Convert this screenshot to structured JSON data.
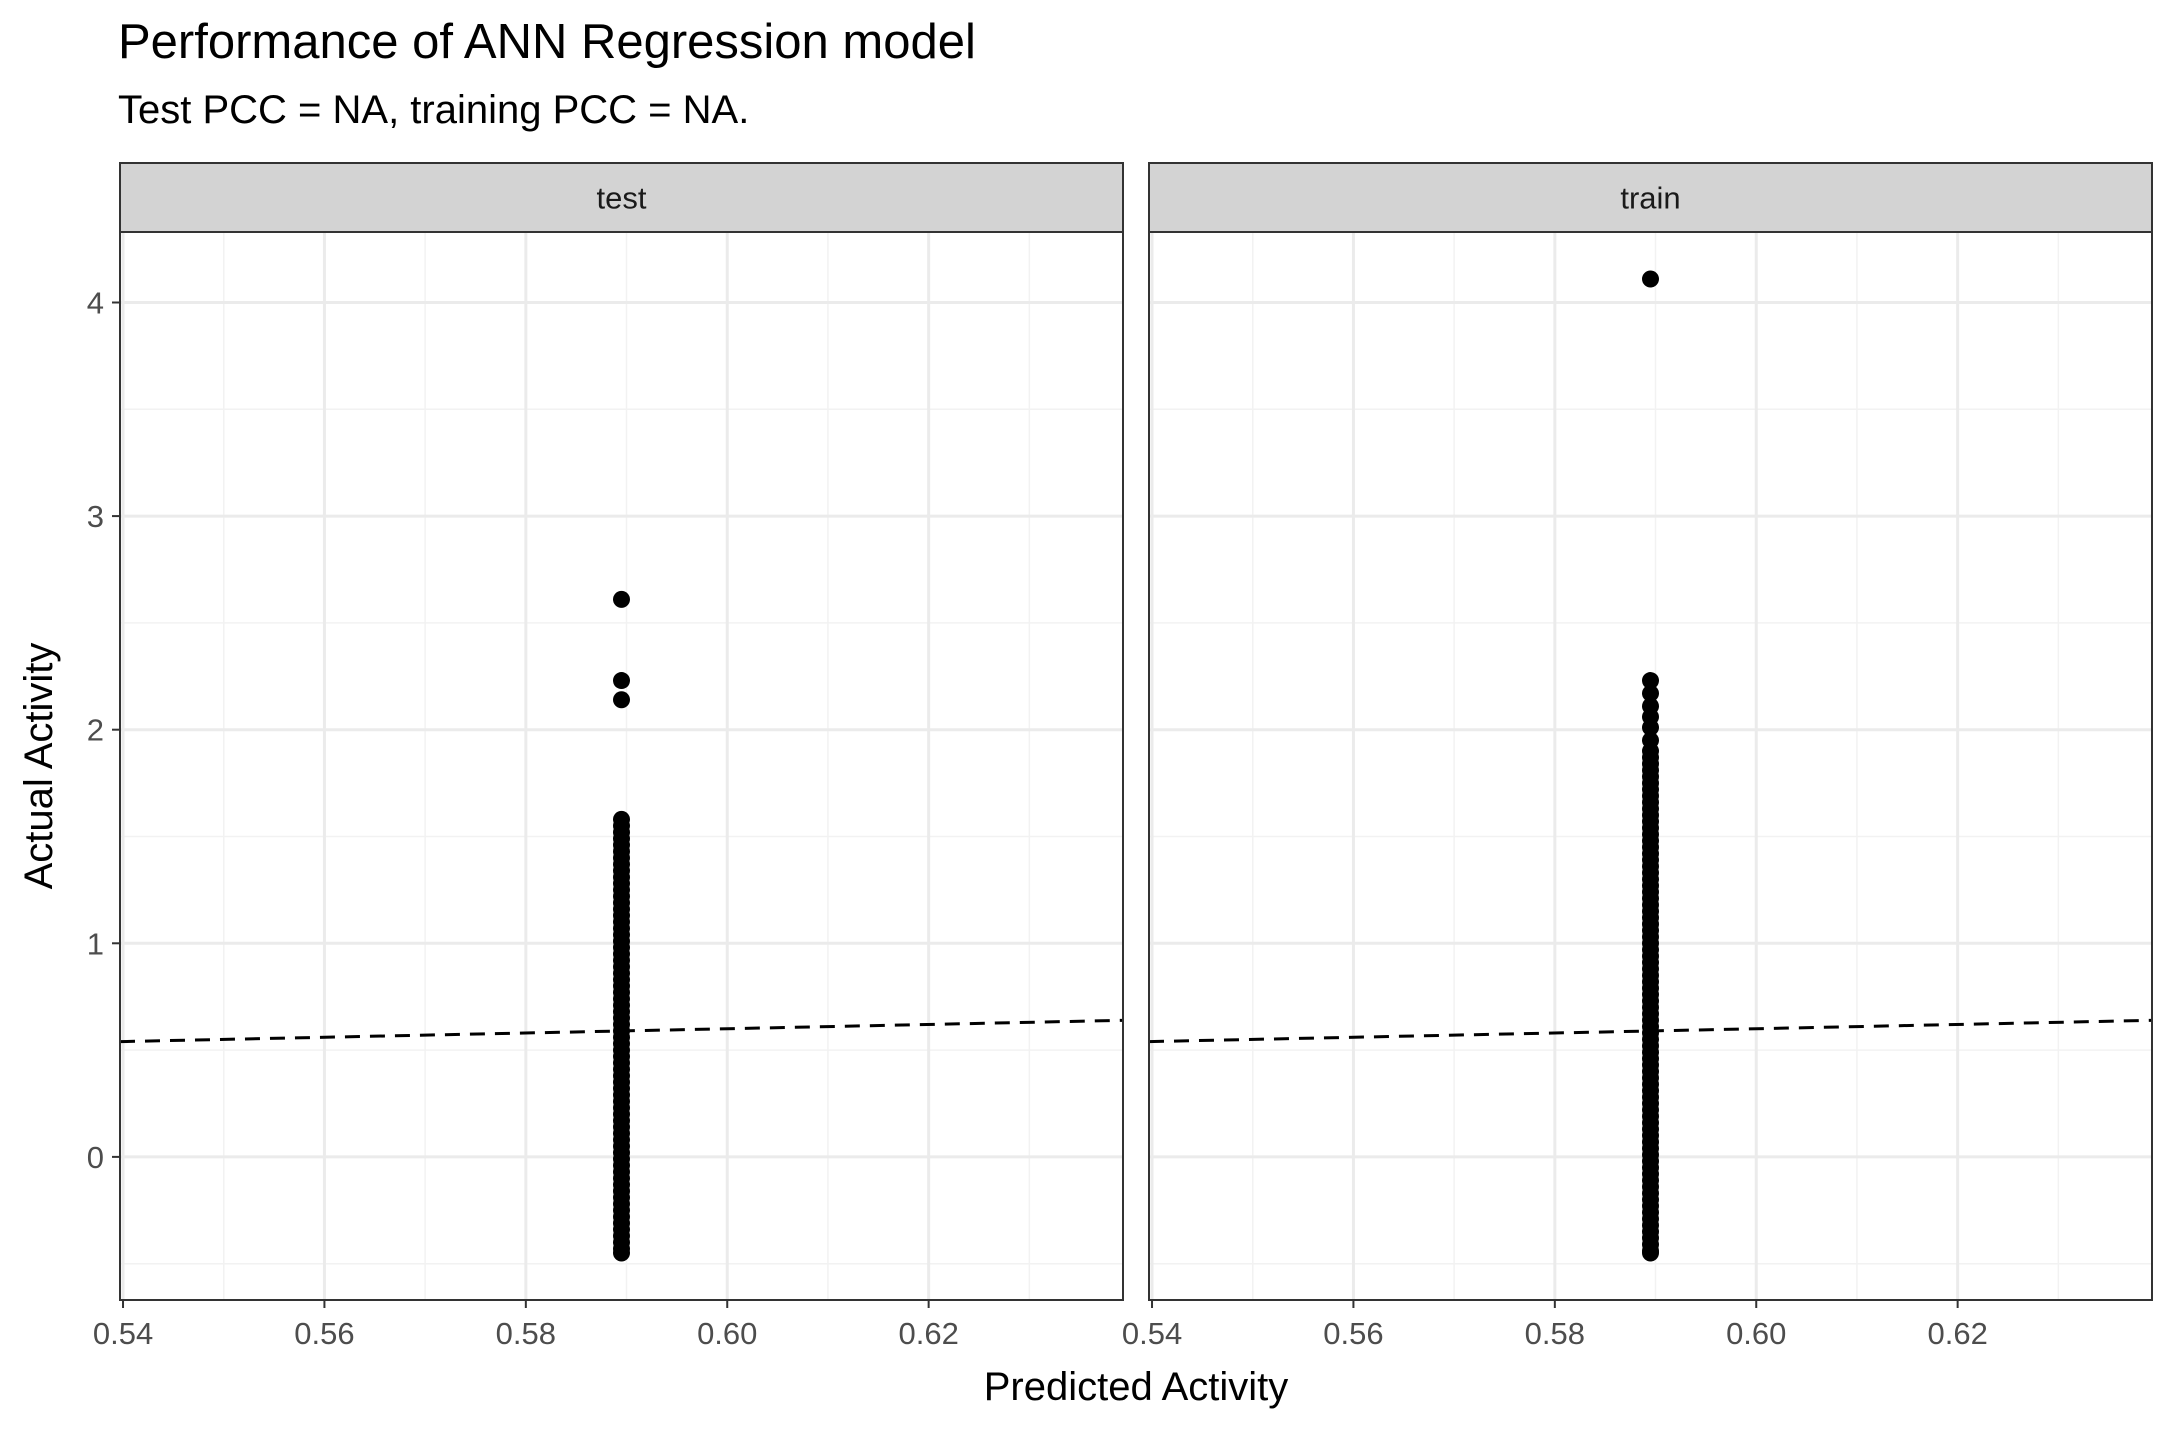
{
  "chart_data": {
    "type": "scatter",
    "title": "Performance of ANN Regression model",
    "subtitle": "Test PCC = NA, training PCC = NA.",
    "xlabel": "Predicted Activity",
    "ylabel": "Actual Activity",
    "xlim": [
      0.5397,
      0.6393
    ],
    "ylim": [
      -0.67,
      4.33
    ],
    "x_ticks": [
      0.54,
      0.56,
      0.58,
      0.6,
      0.62
    ],
    "x_tick_labels": [
      "0.54",
      "0.56",
      "0.58",
      "0.60",
      "0.62"
    ],
    "y_ticks": [
      0,
      1,
      2,
      3,
      4
    ],
    "y_tick_labels": [
      "0",
      "1",
      "2",
      "3",
      "4"
    ],
    "grid": true,
    "reference_line": {
      "style": "dashed",
      "slope": 1,
      "intercept": 0
    },
    "panels": [
      {
        "name": "test",
        "predicted": 0.5895,
        "points": [
          2.61,
          2.23,
          2.14,
          1.58,
          1.55,
          1.52,
          1.49,
          1.46,
          1.43,
          1.4,
          1.37,
          1.34,
          1.31,
          1.28,
          1.25,
          1.22,
          1.19,
          1.16,
          1.13,
          1.1,
          1.07,
          1.04,
          1.01,
          0.98,
          0.95,
          0.92,
          0.89,
          0.86,
          0.83,
          0.8,
          0.77,
          0.74,
          0.71,
          0.68,
          0.65,
          0.62,
          0.59,
          0.56,
          0.53,
          0.5,
          0.47,
          0.44,
          0.41,
          0.38,
          0.35,
          0.32,
          0.29,
          0.26,
          0.23,
          0.2,
          0.17,
          0.14,
          0.11,
          0.08,
          0.05,
          0.02,
          -0.01,
          -0.04,
          -0.07,
          -0.1,
          -0.13,
          -0.16,
          -0.19,
          -0.22,
          -0.25,
          -0.28,
          -0.31,
          -0.34,
          -0.37,
          -0.4,
          -0.43,
          -0.45
        ]
      },
      {
        "name": "train",
        "predicted": 0.5895,
        "points": [
          4.11,
          2.23,
          2.17,
          2.11,
          2.06,
          2.01,
          1.95,
          1.9,
          1.87,
          1.84,
          1.81,
          1.78,
          1.75,
          1.72,
          1.69,
          1.66,
          1.63,
          1.6,
          1.57,
          1.54,
          1.51,
          1.48,
          1.45,
          1.42,
          1.39,
          1.36,
          1.33,
          1.3,
          1.27,
          1.24,
          1.21,
          1.18,
          1.15,
          1.12,
          1.09,
          1.06,
          1.03,
          1.0,
          0.97,
          0.94,
          0.91,
          0.88,
          0.85,
          0.82,
          0.79,
          0.76,
          0.73,
          0.7,
          0.67,
          0.64,
          0.61,
          0.58,
          0.55,
          0.52,
          0.49,
          0.46,
          0.43,
          0.4,
          0.37,
          0.34,
          0.31,
          0.28,
          0.25,
          0.22,
          0.19,
          0.16,
          0.13,
          0.1,
          0.07,
          0.04,
          0.01,
          -0.02,
          -0.05,
          -0.08,
          -0.11,
          -0.14,
          -0.17,
          -0.2,
          -0.23,
          -0.26,
          -0.29,
          -0.32,
          -0.35,
          -0.38,
          -0.41,
          -0.44,
          -0.45
        ]
      }
    ],
    "colors": {
      "points": "#000000",
      "strip": "#d3d3d3",
      "grid_major": "#ebebeb",
      "grid_minor": "#f2f2f2",
      "axis_text": "#4d4d4d",
      "border": "#333333"
    }
  }
}
